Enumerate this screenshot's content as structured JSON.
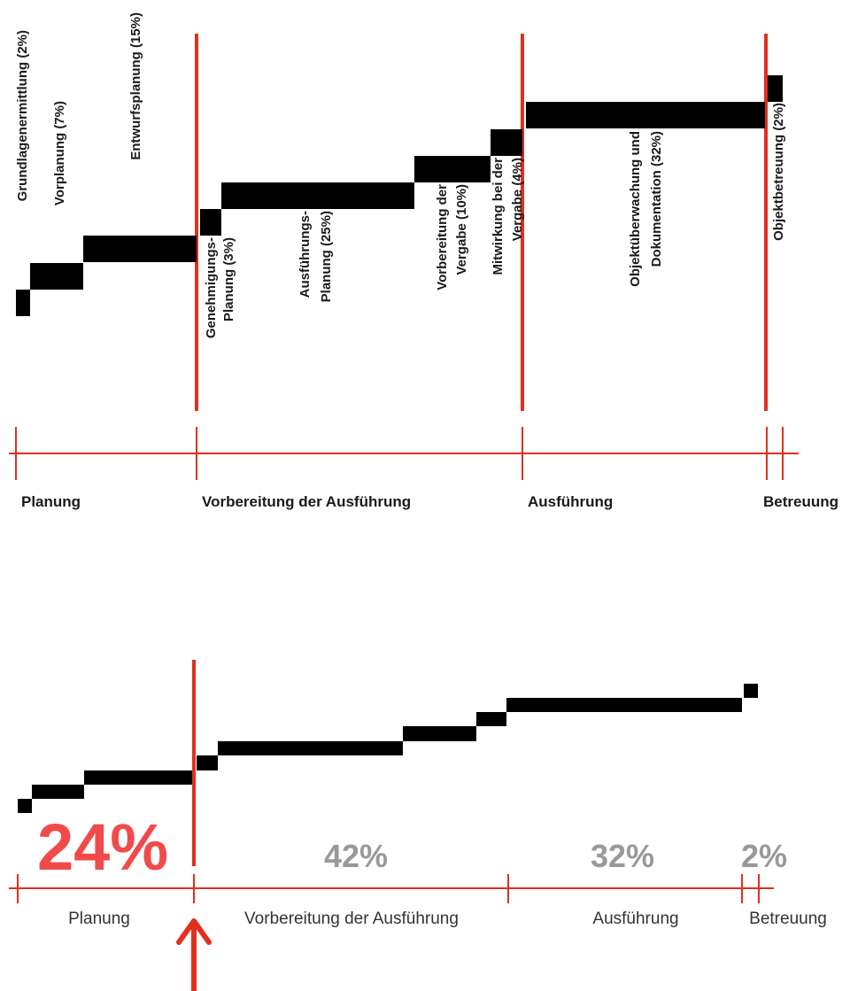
{
  "colors": {
    "accent_red": "#e0301e",
    "highlight_red": "#f24a4a",
    "muted_gray": "#999999",
    "bar_black": "#000000"
  },
  "top_chart": {
    "steps": [
      {
        "id": "lp1",
        "label_lines": [
          "Grundlagenermittlung (2%)"
        ],
        "percent": 2
      },
      {
        "id": "lp2",
        "label_lines": [
          "Vorplanung (7%)"
        ],
        "percent": 7
      },
      {
        "id": "lp3",
        "label_lines": [
          "Entwurfsplanung (15%)"
        ],
        "percent": 15
      },
      {
        "id": "lp4",
        "label_lines": [
          "Genehmigungs-",
          "Planung (3%)"
        ],
        "percent": 3
      },
      {
        "id": "lp5",
        "label_lines": [
          "Ausführungs-",
          "Planung  (25%)"
        ],
        "percent": 25
      },
      {
        "id": "lp6",
        "label_lines": [
          "Vorbereitung der",
          "Vergabe (10%)"
        ],
        "percent": 10
      },
      {
        "id": "lp7",
        "label_lines": [
          "Mitwirkung bei der",
          "Vergabe (4%)"
        ],
        "percent": 4
      },
      {
        "id": "lp8",
        "label_lines": [
          "Objektüberwachung und",
          "Dokumentation (32%)"
        ],
        "percent": 32
      },
      {
        "id": "lp9",
        "label_lines": [
          "Objektbetreuung (2%)"
        ],
        "percent": 2
      }
    ],
    "phases": [
      "Planung",
      "Vorbereitung der Ausführung",
      "Ausführung",
      "Betreuung"
    ]
  },
  "bottom_chart": {
    "phases": [
      "Planung",
      "Vorbereitung der Ausführung",
      "Ausführung",
      "Betreuung"
    ],
    "phase_percents": [
      "24%",
      "42%",
      "32%",
      "2%"
    ],
    "highlighted_phase": 0
  }
}
